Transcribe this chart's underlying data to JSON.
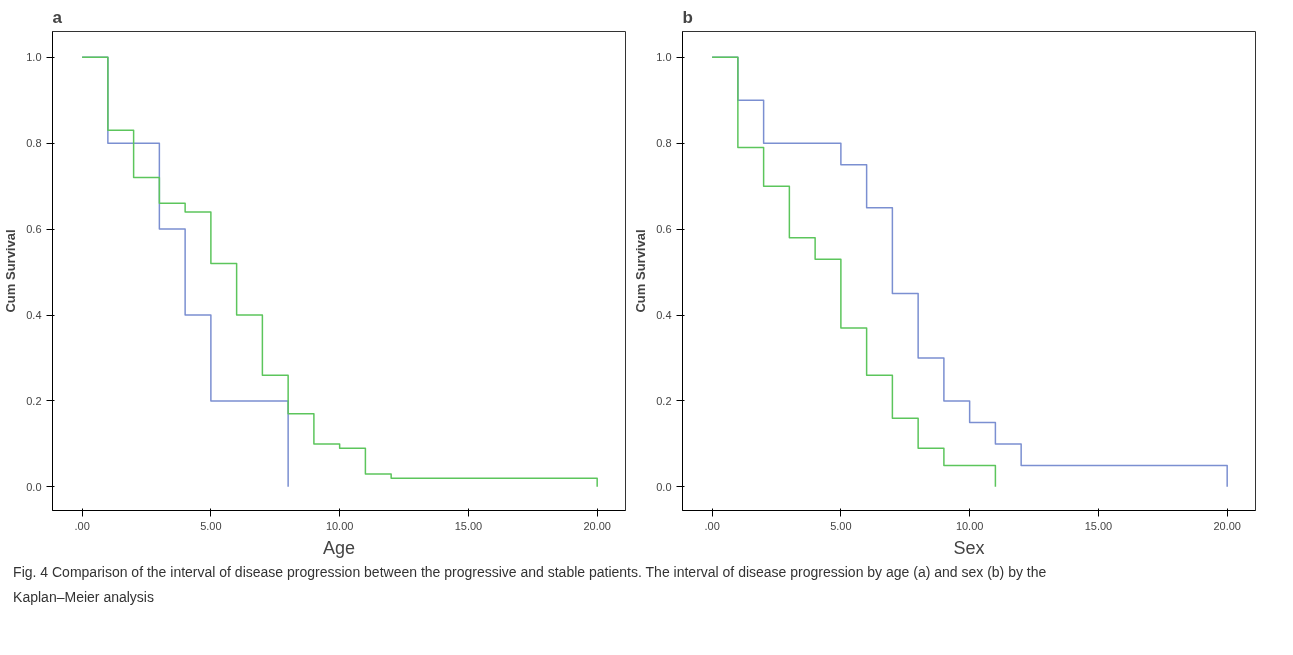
{
  "chart_data": [
    {
      "type": "step",
      "title": "a",
      "xlabel": "Age",
      "ylabel": "Cum Survival",
      "xlim": [
        -1.15,
        21.1
      ],
      "ylim": [
        -0.055,
        1.06
      ],
      "xticks": [
        {
          "value": 0,
          "label": ".00"
        },
        {
          "value": 5,
          "label": "5.00"
        },
        {
          "value": 10,
          "label": "10.00"
        },
        {
          "value": 15,
          "label": "15.00"
        },
        {
          "value": 20,
          "label": "20.00"
        }
      ],
      "yticks": [
        {
          "value": 0,
          "label": "0.0"
        },
        {
          "value": 0.2,
          "label": "0.2"
        },
        {
          "value": 0.4,
          "label": "0.4"
        },
        {
          "value": 0.6,
          "label": "0.6"
        },
        {
          "value": 0.8,
          "label": "0.8"
        },
        {
          "value": 1,
          "label": "1.0"
        }
      ],
      "grid": false,
      "series": [
        {
          "color": "#7b8fd1",
          "x": [
            0,
            1,
            3,
            4,
            5,
            8
          ],
          "values": [
            1.0,
            0.8,
            0.6,
            0.4,
            0.2,
            0.0
          ]
        },
        {
          "color": "#5cc55c",
          "x": [
            0,
            1,
            2,
            3,
            4,
            5,
            6,
            7,
            8,
            9,
            10,
            11,
            12,
            20
          ],
          "values": [
            1.0,
            0.83,
            0.72,
            0.66,
            0.64,
            0.52,
            0.4,
            0.26,
            0.17,
            0.1,
            0.09,
            0.03,
            0.02,
            0.0
          ]
        }
      ],
      "annotations": [
        "Fig. 4  Comparison of the interval of disease progression between the progressive and stable patients. The interval of disease progression by age (a) and sex (b) by the Kaplan–Meier analysis"
      ]
    },
    {
      "type": "step",
      "title": "b",
      "xlabel": "Sex",
      "ylabel": "Cum Survival",
      "xlim": [
        -1.15,
        21.1
      ],
      "ylim": [
        -0.055,
        1.06
      ],
      "xticks": [
        {
          "value": 0,
          "label": ".00"
        },
        {
          "value": 5,
          "label": "5.00"
        },
        {
          "value": 10,
          "label": "10.00"
        },
        {
          "value": 15,
          "label": "15.00"
        },
        {
          "value": 20,
          "label": "20.00"
        }
      ],
      "yticks": [
        {
          "value": 0,
          "label": "0.0"
        },
        {
          "value": 0.2,
          "label": "0.2"
        },
        {
          "value": 0.4,
          "label": "0.4"
        },
        {
          "value": 0.6,
          "label": "0.6"
        },
        {
          "value": 0.8,
          "label": "0.8"
        },
        {
          "value": 1,
          "label": "1.0"
        }
      ],
      "grid": false,
      "series": [
        {
          "color": "#7b8fd1",
          "x": [
            0,
            1,
            2,
            5,
            6,
            7,
            8,
            9,
            10,
            11,
            12,
            20
          ],
          "values": [
            1.0,
            0.9,
            0.8,
            0.75,
            0.65,
            0.45,
            0.3,
            0.2,
            0.15,
            0.1,
            0.05,
            0.0
          ]
        },
        {
          "color": "#5cc55c",
          "x": [
            0,
            1,
            2,
            3,
            4,
            5,
            6,
            7,
            8,
            9,
            11
          ],
          "values": [
            1.0,
            0.79,
            0.7,
            0.58,
            0.53,
            0.37,
            0.26,
            0.16,
            0.09,
            0.05,
            0.0
          ]
        }
      ]
    }
  ]
}
